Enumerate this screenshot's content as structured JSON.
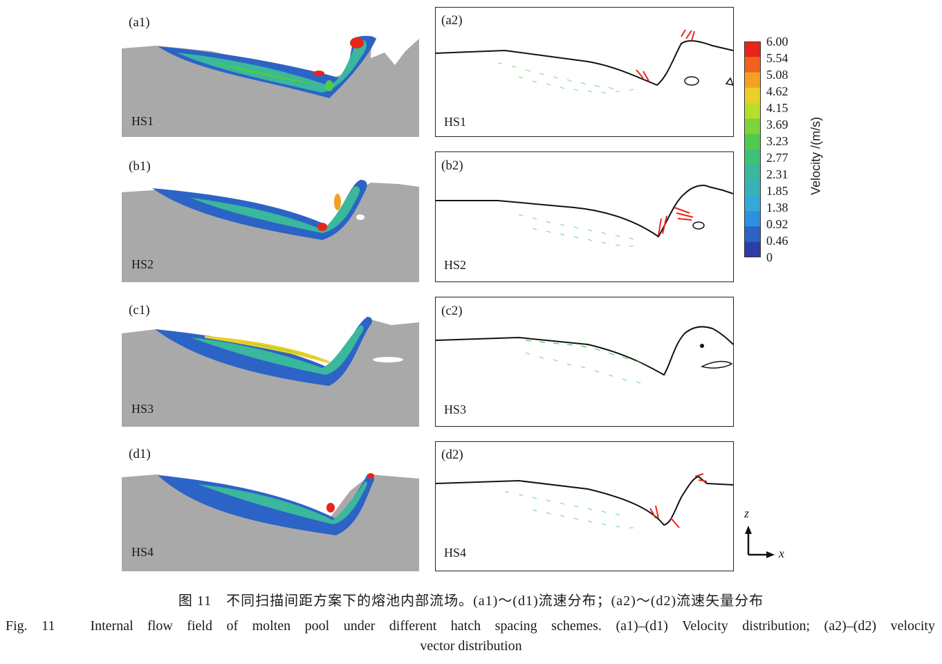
{
  "panels": [
    {
      "label_left": "(a1)",
      "label_right": "(a2)",
      "scheme": "HS1"
    },
    {
      "label_left": "(b1)",
      "label_right": "(b2)",
      "scheme": "HS2"
    },
    {
      "label_left": "(c1)",
      "label_right": "(c2)",
      "scheme": "HS3"
    },
    {
      "label_left": "(d1)",
      "label_right": "(d2)",
      "scheme": "HS4"
    }
  ],
  "legend": {
    "title": "Velocity /(m/s)",
    "ticks": [
      "6.00",
      "5.54",
      "5.08",
      "4.62",
      "4.15",
      "3.69",
      "3.23",
      "2.77",
      "2.31",
      "1.85",
      "1.38",
      "0.92",
      "0.46",
      "0"
    ],
    "colors": [
      "#e8251b",
      "#f2601e",
      "#f5a023",
      "#e9cf26",
      "#b9de2a",
      "#7fd33a",
      "#4fc94e",
      "#3fc07a",
      "#3ab79c",
      "#35b3b7",
      "#33a9d8",
      "#2f8fe0",
      "#2c63c6",
      "#2a3fa6"
    ]
  },
  "axes": {
    "z": "z",
    "x": "x"
  },
  "caption": {
    "cn": "图 11　不同扫描间距方案下的熔池内部流场。(a1)～(d1)流速分布；(a2)～(d2)流速矢量分布",
    "en_line1": "Fig. 11　Internal flow field of molten pool under different hatch spacing schemes. (a1)–(d1) Velocity distribution; (a2)–(d2) velocity",
    "en_line2": "vector distribution"
  }
}
